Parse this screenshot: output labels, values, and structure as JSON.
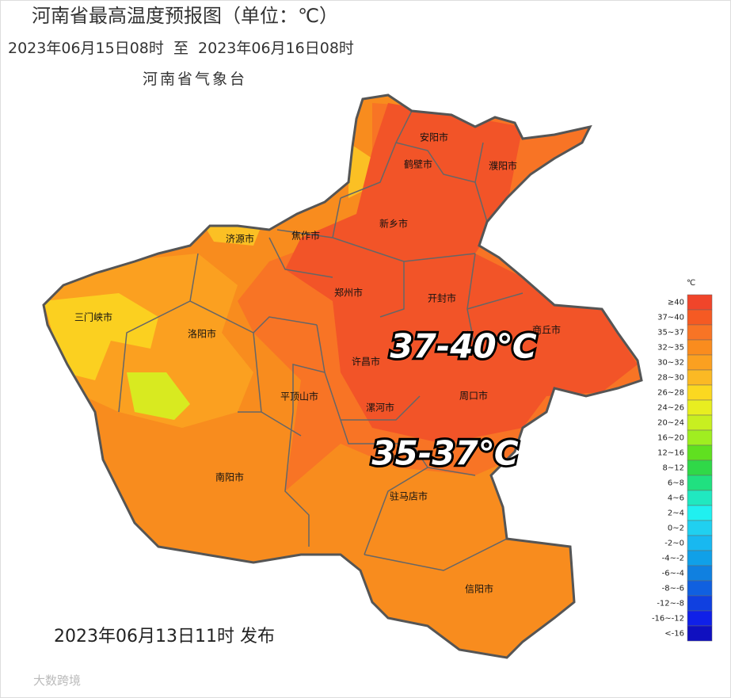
{
  "header": {
    "title": "河南省最高温度预报图（单位：℃）",
    "period": "2023年06月15日08时  至  2023年06月16日08时",
    "agency": "河南省气象台"
  },
  "map": {
    "cities": [
      "安阳市",
      "鹤壁市",
      "濮阳市",
      "新乡市",
      "济源市",
      "焦作市",
      "郑州市",
      "开封市",
      "三门峡市",
      "洛阳市",
      "商丘市",
      "许昌市",
      "平顶山市",
      "漯河市",
      "周口市",
      "南阳市",
      "驻马店市",
      "信阳市"
    ],
    "annotations": [
      "37-40℃",
      "35-37℃"
    ]
  },
  "legend": {
    "unit": "℃",
    "items": [
      {
        "label": "≥40",
        "color": "#f0452a"
      },
      {
        "label": "37~40",
        "color": "#f55a23"
      },
      {
        "label": "35~37",
        "color": "#f87425"
      },
      {
        "label": "32~35",
        "color": "#fa8c1e"
      },
      {
        "label": "30~32",
        "color": "#fba020"
      },
      {
        "label": "28~30",
        "color": "#fbb924"
      },
      {
        "label": "26~28",
        "color": "#fbd820"
      },
      {
        "label": "24~26",
        "color": "#e8ee20"
      },
      {
        "label": "20~24",
        "color": "#c8ef20"
      },
      {
        "label": "16~20",
        "color": "#a0ee20"
      },
      {
        "label": "12~16",
        "color": "#60e020"
      },
      {
        "label": "8~12",
        "color": "#30d848"
      },
      {
        "label": "6~8",
        "color": "#20e080"
      },
      {
        "label": "4~6",
        "color": "#20e8c0"
      },
      {
        "label": "2~4",
        "color": "#20f0f0"
      },
      {
        "label": "0~2",
        "color": "#20d0f0"
      },
      {
        "label": "-2~0",
        "color": "#18b8f0"
      },
      {
        "label": "-4~-2",
        "color": "#10a0e8"
      },
      {
        "label": "-6~-4",
        "color": "#1080e0"
      },
      {
        "label": "-8~-6",
        "color": "#1060e0"
      },
      {
        "label": "-12~-8",
        "color": "#1040e0"
      },
      {
        "label": "-16~-12",
        "color": "#1020e8"
      },
      {
        "label": "<-16",
        "color": "#1010c0"
      }
    ]
  },
  "footer": {
    "issued": "2023年06月13日11时 发布",
    "watermark": "大数跨境"
  }
}
